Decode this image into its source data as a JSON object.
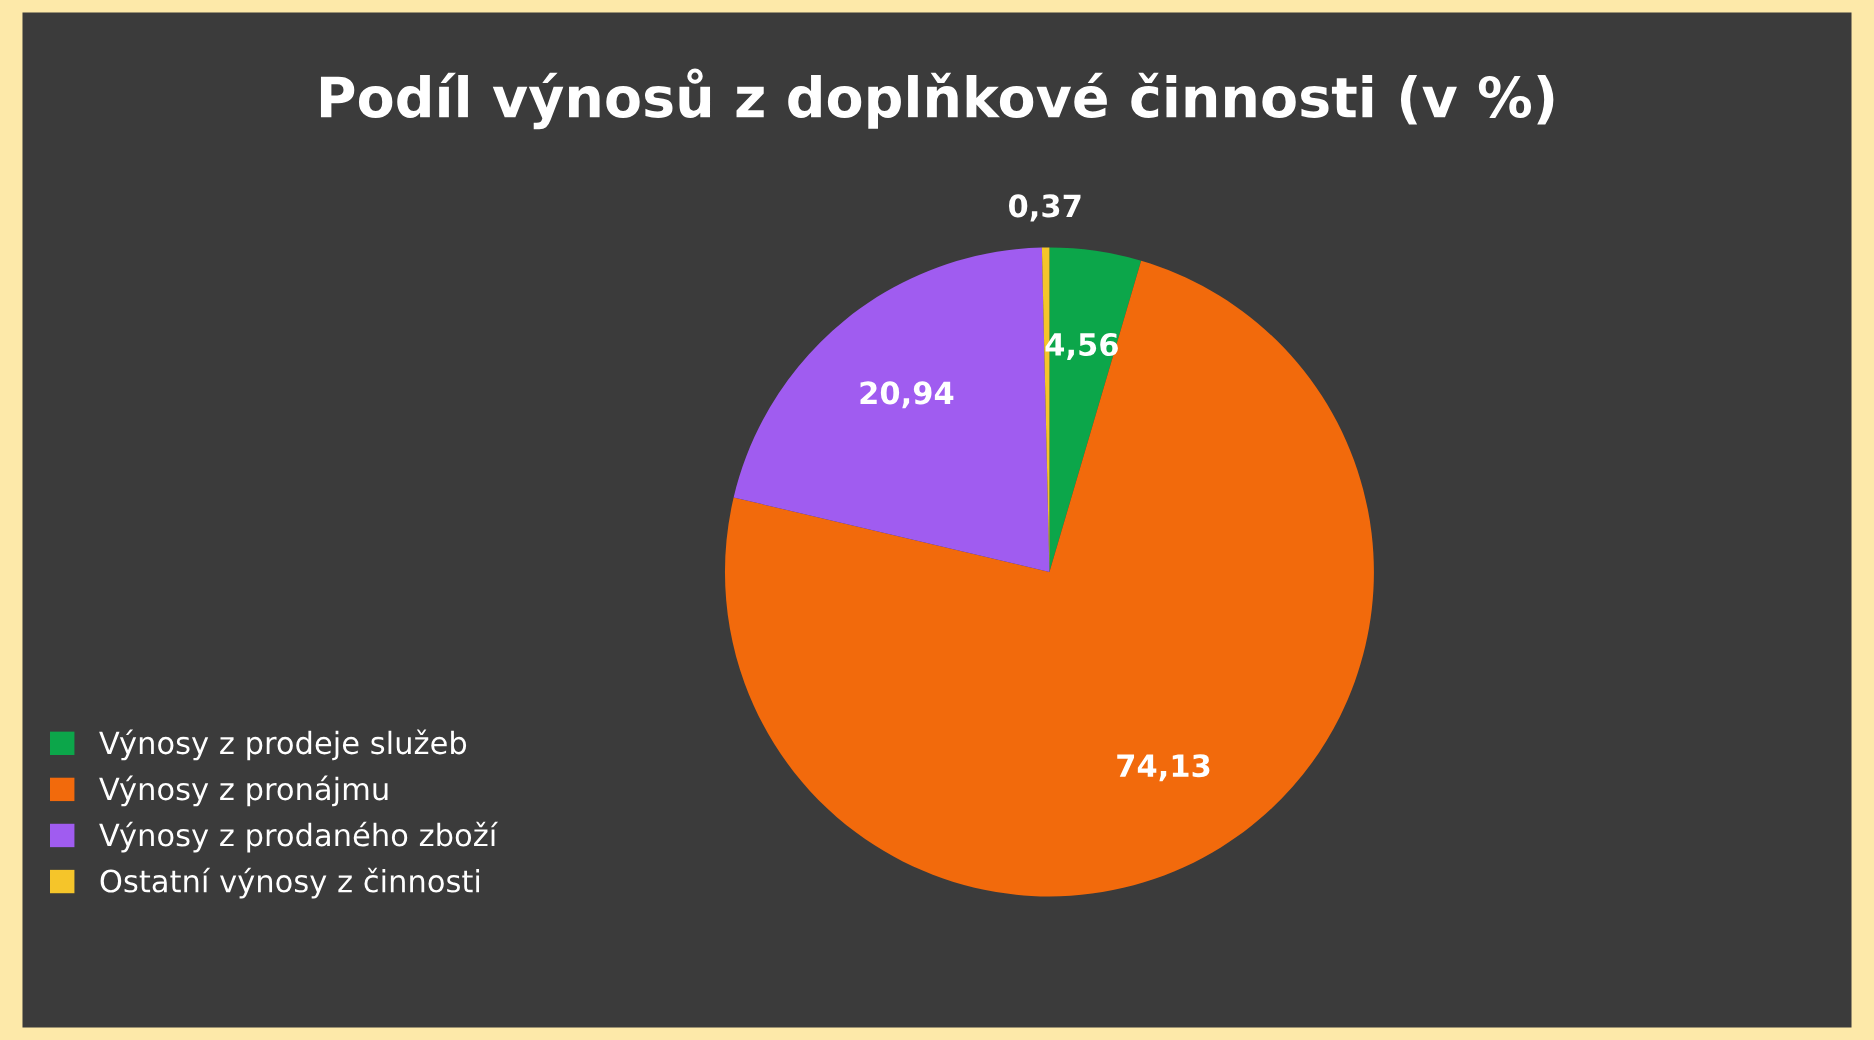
{
  "chart_data": {
    "type": "pie",
    "title": "Podíl výnosů z doplňkové činnosti (v %)",
    "categories": [
      "Výnosy z prodeje služeb",
      "Výnosy z pronájmu",
      "Výnosy z prodaného zboží",
      "Ostatní výnosy z činnosti"
    ],
    "values": [
      4.56,
      74.13,
      20.94,
      0.37
    ],
    "colors": [
      "#0ca64a",
      "#f26a0c",
      "#a05cf0",
      "#f5c52a"
    ],
    "value_labels": [
      "4,56",
      "74,13",
      "20,94",
      "0,37"
    ],
    "legend": "bottom left"
  }
}
